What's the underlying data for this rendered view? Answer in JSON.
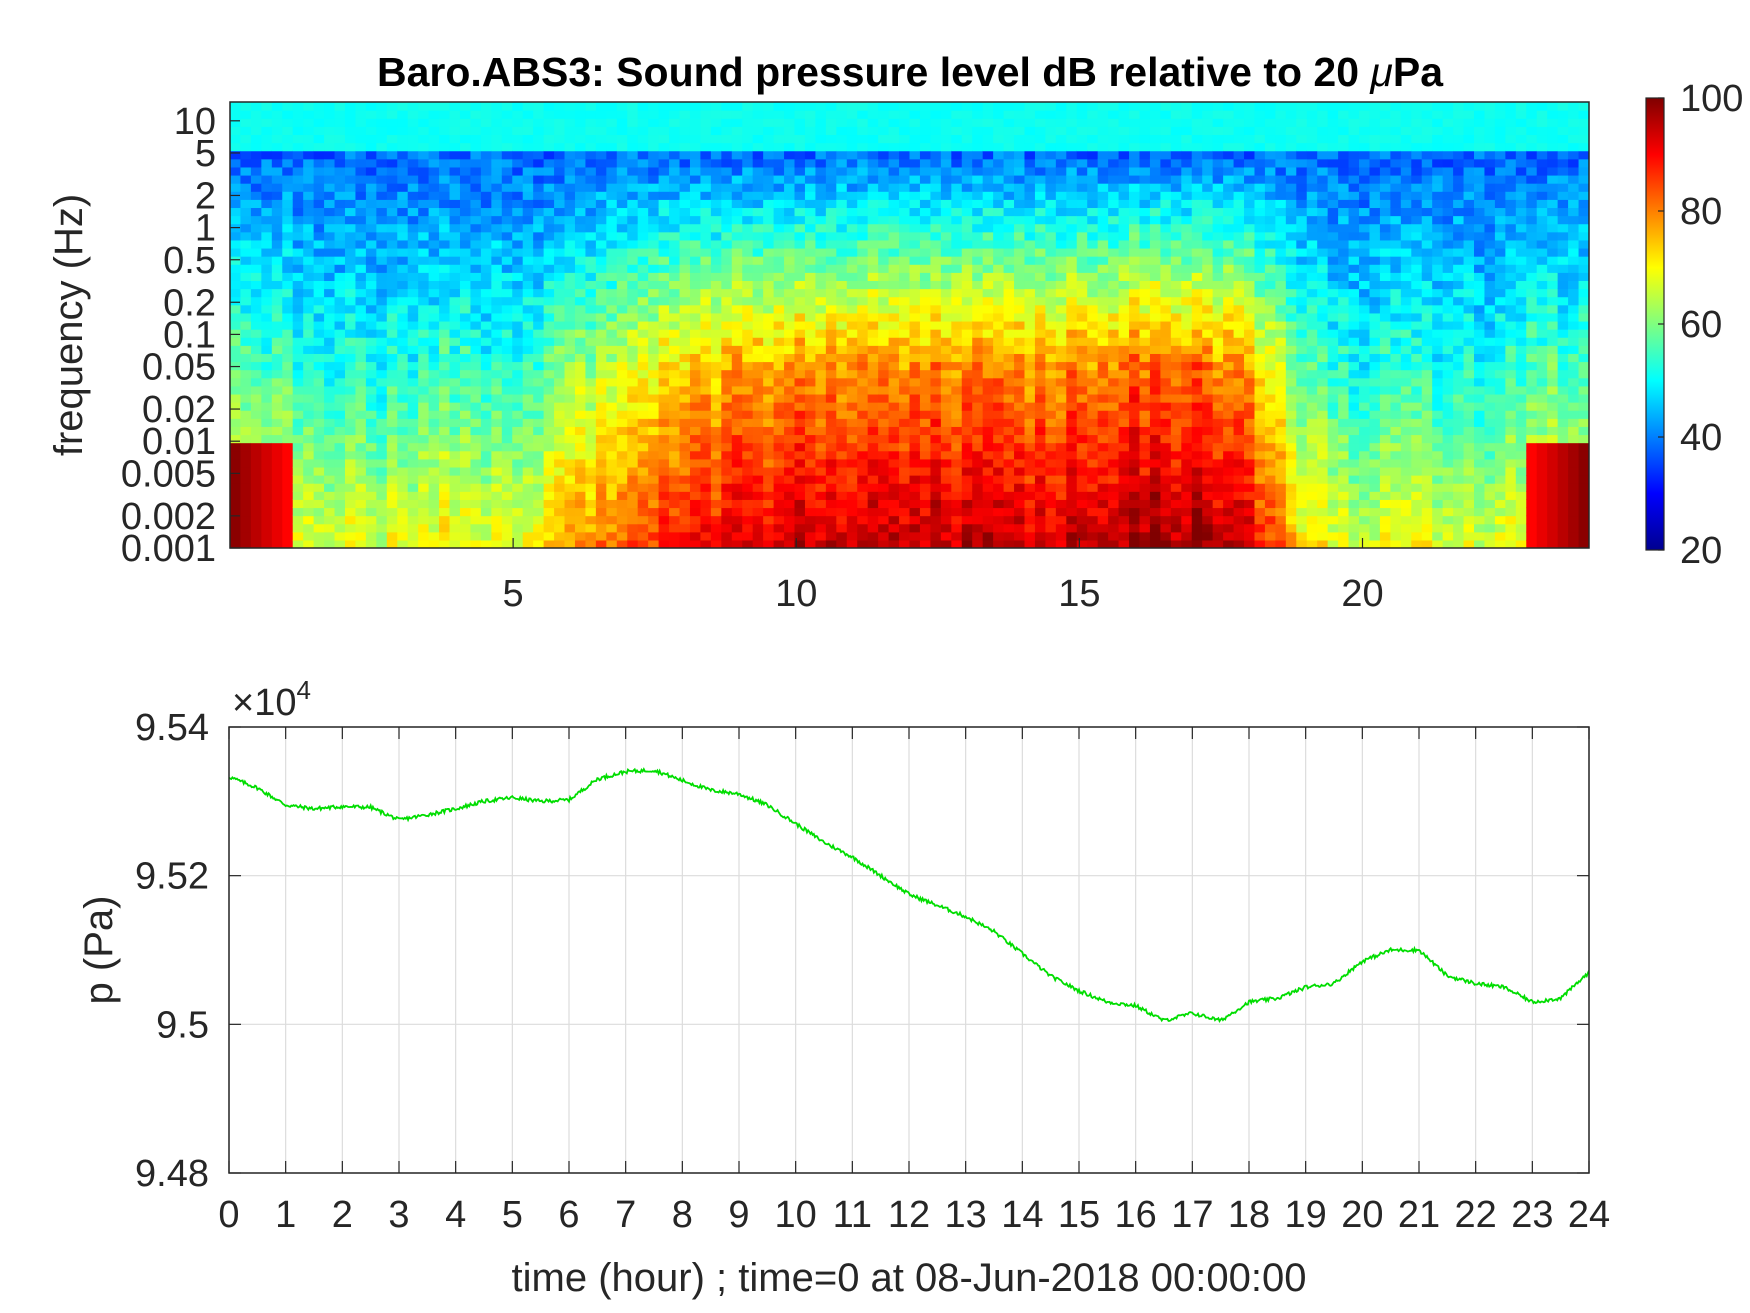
{
  "chart_data": [
    {
      "type": "heatmap",
      "title_main": "Baro.ABS3: Sound pressure level dB relative to 20 ",
      "title_mu": "μ",
      "title_tail": "Pa",
      "ylabel": "frequency (Hz)",
      "x_range": [
        0,
        24
      ],
      "x_ticks": [
        5,
        10,
        15,
        20
      ],
      "y_scale": "log",
      "y_range": [
        0.001,
        15
      ],
      "y_ticks": [
        0.001,
        0.002,
        0.005,
        0.01,
        0.02,
        0.05,
        0.1,
        0.2,
        0.5,
        1,
        2,
        5,
        10
      ],
      "y_tick_labels": [
        "0.001",
        "0.002",
        "0.005",
        "0.01",
        "0.02",
        "0.05",
        "0.1",
        "0.2",
        "0.5",
        "1",
        "2",
        "5",
        "10"
      ],
      "colormap": "jet",
      "colorbar": {
        "range": [
          20,
          100
        ],
        "ticks": [
          20,
          40,
          60,
          80,
          100
        ],
        "tick_labels": [
          "20",
          "40",
          "60",
          "80",
          "100"
        ]
      },
      "activity_profile": {
        "note_x_hours": [
          0,
          1,
          2,
          3,
          4,
          5,
          6,
          7,
          8,
          9,
          10,
          11,
          12,
          13,
          14,
          15,
          16,
          17,
          18,
          19,
          20,
          21,
          22,
          23,
          24
        ],
        "level_db_at_0_05Hz": [
          58,
          55,
          52,
          52,
          55,
          52,
          60,
          68,
          72,
          76,
          78,
          80,
          80,
          80,
          78,
          80,
          82,
          82,
          78,
          55,
          52,
          52,
          52,
          54,
          58
        ]
      },
      "grid": false
    },
    {
      "type": "line",
      "ylabel": "p (Pa)",
      "xlabel": "time (hour) ; time=0 at 08-Jun-2018 00:00:00",
      "y_exponent_label": "×10",
      "y_exponent_power": "4",
      "xlim": [
        0,
        24
      ],
      "ylim": [
        94800,
        95400
      ],
      "x_ticks": [
        0,
        1,
        2,
        3,
        4,
        5,
        6,
        7,
        8,
        9,
        10,
        11,
        12,
        13,
        14,
        15,
        16,
        17,
        18,
        19,
        20,
        21,
        22,
        23,
        24
      ],
      "x_tick_labels": [
        "0",
        "1",
        "2",
        "3",
        "4",
        "5",
        "6",
        "7",
        "8",
        "9",
        "10",
        "11",
        "12",
        "13",
        "14",
        "15",
        "16",
        "17",
        "18",
        "19",
        "20",
        "21",
        "22",
        "23",
        "24"
      ],
      "y_ticks": [
        94800,
        95000,
        95200,
        95400
      ],
      "y_tick_labels": [
        "9.48",
        "9.5",
        "9.52",
        "9.54"
      ],
      "grid": true,
      "series": [
        {
          "color": "#00dd00",
          "x": [
            0,
            0.5,
            1,
            1.5,
            2,
            2.5,
            3,
            3.5,
            4,
            4.5,
            5,
            5.5,
            6,
            6.5,
            7,
            7.5,
            8,
            8.5,
            9,
            9.5,
            10,
            10.5,
            11,
            11.5,
            12,
            12.5,
            13,
            13.5,
            14,
            14.5,
            15,
            15.5,
            16,
            16.5,
            17,
            17.5,
            18,
            18.5,
            19,
            19.5,
            20,
            20.5,
            21,
            21.5,
            22,
            22.5,
            23,
            23.5,
            24
          ],
          "y": [
            95333,
            95318,
            95295,
            95290,
            95293,
            95292,
            95275,
            95282,
            95290,
            95300,
            95305,
            95300,
            95302,
            95330,
            95340,
            95342,
            95328,
            95315,
            95310,
            95295,
            95270,
            95245,
            95225,
            95200,
            95175,
            95160,
            95145,
            95125,
            95095,
            95065,
            95045,
            95030,
            95025,
            95005,
            95015,
            95005,
            95030,
            95035,
            95050,
            95055,
            95085,
            95100,
            95100,
            95065,
            95055,
            95050,
            95030,
            95035,
            95070
          ]
        }
      ]
    }
  ]
}
